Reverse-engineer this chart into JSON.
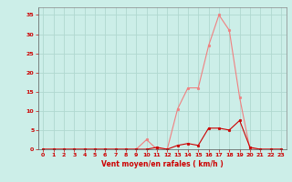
{
  "x": [
    0,
    1,
    2,
    3,
    4,
    5,
    6,
    7,
    8,
    9,
    10,
    11,
    12,
    13,
    14,
    15,
    16,
    17,
    18,
    19,
    20,
    21,
    22,
    23
  ],
  "rafales": [
    0,
    0,
    0,
    0,
    0,
    0,
    0,
    0,
    0,
    0,
    2.5,
    0,
    0,
    10.5,
    16,
    16,
    27,
    35,
    31,
    13.5,
    0,
    0,
    0,
    0
  ],
  "vent_moyen": [
    0,
    0,
    0,
    0,
    0,
    0,
    0,
    0,
    0,
    0,
    0,
    0.5,
    0,
    1,
    1.5,
    1,
    5.5,
    5.5,
    5,
    7.5,
    0.5,
    0,
    0,
    0
  ],
  "bg_color": "#cceee8",
  "grid_color": "#b0d8d0",
  "line_color_rafales": "#f08080",
  "line_color_moyen": "#cc0000",
  "xlabel": "Vent moyen/en rafales ( km/h )",
  "xlabel_color": "#cc0000",
  "tick_color": "#cc0000",
  "marker_color_rafales": "#f08080",
  "marker_color_moyen": "#cc0000",
  "ylim": [
    0,
    37
  ],
  "xlim": [
    -0.5,
    23.5
  ],
  "yticks": [
    0,
    5,
    10,
    15,
    20,
    25,
    30,
    35
  ],
  "xticks": [
    0,
    1,
    2,
    3,
    4,
    5,
    6,
    7,
    8,
    9,
    10,
    11,
    12,
    13,
    14,
    15,
    16,
    17,
    18,
    19,
    20,
    21,
    22,
    23
  ]
}
